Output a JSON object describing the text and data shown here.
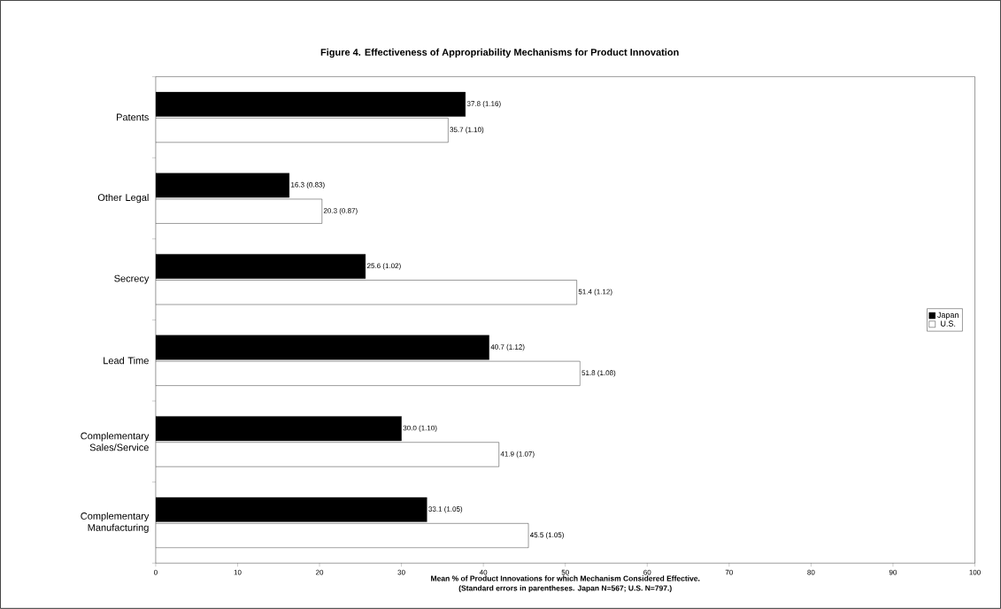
{
  "chart_data": {
    "type": "bar",
    "orientation": "horizontal",
    "title": "Figure 4. Effectiveness of Appropriability Mechanisms for Product Innovation",
    "xlabel": "Mean % of Product Innovations for which Mechanism Considered Effective.",
    "annotations": [
      "(Standard errors in parentheses. Japan N=567; U.S. N=797.)"
    ],
    "categories": [
      "Patents",
      "Other Legal",
      "Secrecy",
      "Lead Time",
      "Complementary Sales/Service",
      "Complementary Manufacturing"
    ],
    "series": [
      {
        "name": "Japan",
        "color": "#000000",
        "values": [
          37.8,
          16.3,
          25.6,
          40.7,
          30.0,
          33.1
        ],
        "value_labels": [
          "37.8 (1.16)",
          "16.3 (0.83)",
          "25.6 (1.02)",
          "40.7 (1.12)",
          "30.0 (1.10)",
          "33.1 (1.05)"
        ]
      },
      {
        "name": "U.S.",
        "color": "#ffffff",
        "values": [
          35.7,
          20.3,
          51.4,
          51.8,
          41.9,
          45.5
        ],
        "value_labels": [
          "35.7 (1.10)",
          "20.3 (0.87)",
          "51.4 (1.12)",
          "51.8 (1.08)",
          "41.9 (1.07)",
          "45.5 (1.05)"
        ]
      }
    ],
    "xlim": [
      0,
      100
    ],
    "xticks": [
      0,
      10,
      20,
      30,
      40,
      50,
      60,
      70,
      80,
      90,
      100
    ],
    "legend": "right"
  }
}
